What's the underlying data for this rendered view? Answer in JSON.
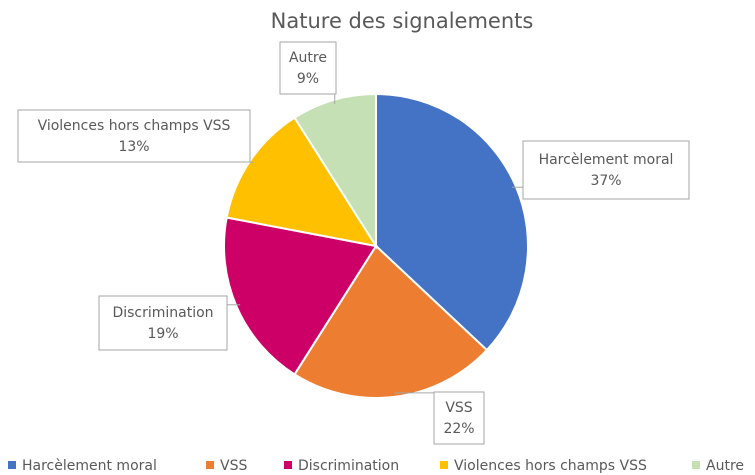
{
  "chart_data": {
    "type": "pie",
    "title": "Nature des signalements",
    "categories": [
      "Harcèlement moral",
      "VSS",
      "Discrimination",
      "Violences hors champs VSS",
      "Autre"
    ],
    "values": [
      37,
      22,
      19,
      13,
      9
    ],
    "value_labels": [
      "37%",
      "22%",
      "19%",
      "13%",
      "9%"
    ],
    "colors": [
      "#4472c4",
      "#ed7d31",
      "#cc0066",
      "#ffc000",
      "#c5e0b4"
    ],
    "legend": "bottom"
  }
}
